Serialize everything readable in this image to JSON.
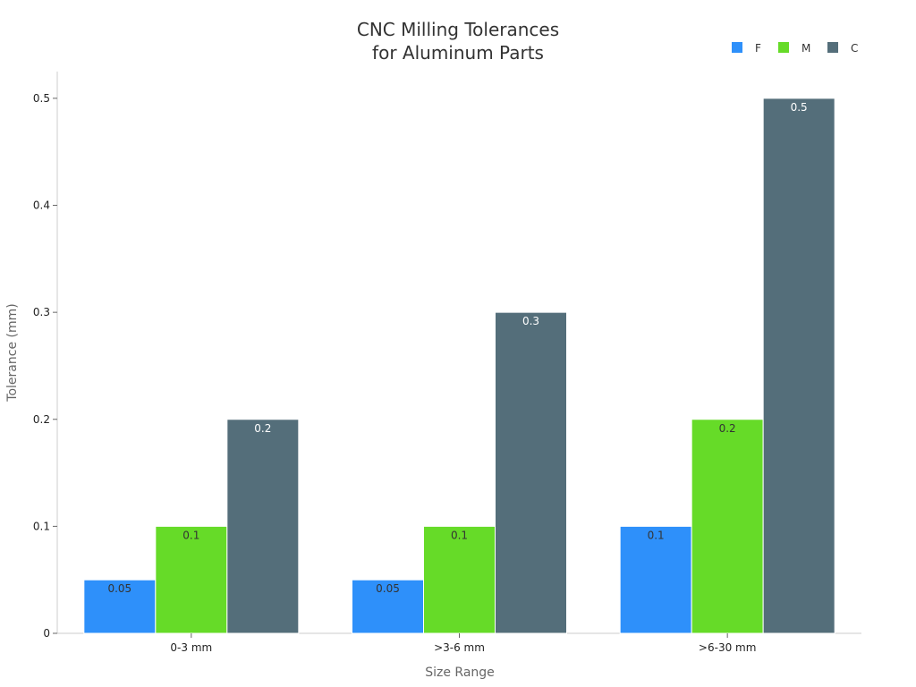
{
  "chart_data": {
    "type": "bar",
    "title": [
      "CNC Milling Tolerances",
      "for Aluminum Parts"
    ],
    "xlabel": "Size Range",
    "ylabel": "Tolerance (mm)",
    "categories": [
      "0-3 mm",
      ">3-6 mm",
      ">6-30 mm"
    ],
    "series": [
      {
        "name": "F",
        "color": "#2e90fa",
        "label_color": "#333333",
        "values": [
          0.05,
          0.05,
          0.1
        ],
        "labels": [
          "0.05",
          "0.05",
          "0.1"
        ]
      },
      {
        "name": "M",
        "color": "#66db28",
        "label_color": "#333333",
        "values": [
          0.1,
          0.1,
          0.2
        ],
        "labels": [
          "0.1",
          "0.1",
          "0.2"
        ]
      },
      {
        "name": "C",
        "color": "#546e7a",
        "label_color": "#ffffff",
        "values": [
          0.2,
          0.3,
          0.5
        ],
        "labels": [
          "0.2",
          "0.3",
          "0.5"
        ]
      }
    ],
    "ylim": [
      0,
      0.525
    ],
    "yticks": [
      0,
      0.1,
      0.2,
      0.3,
      0.4,
      0.5
    ],
    "ytick_labels": [
      "0",
      "0.1",
      "0.2",
      "0.3",
      "0.4",
      "0.5"
    ],
    "legend_position": "top-right",
    "grid": false
  }
}
